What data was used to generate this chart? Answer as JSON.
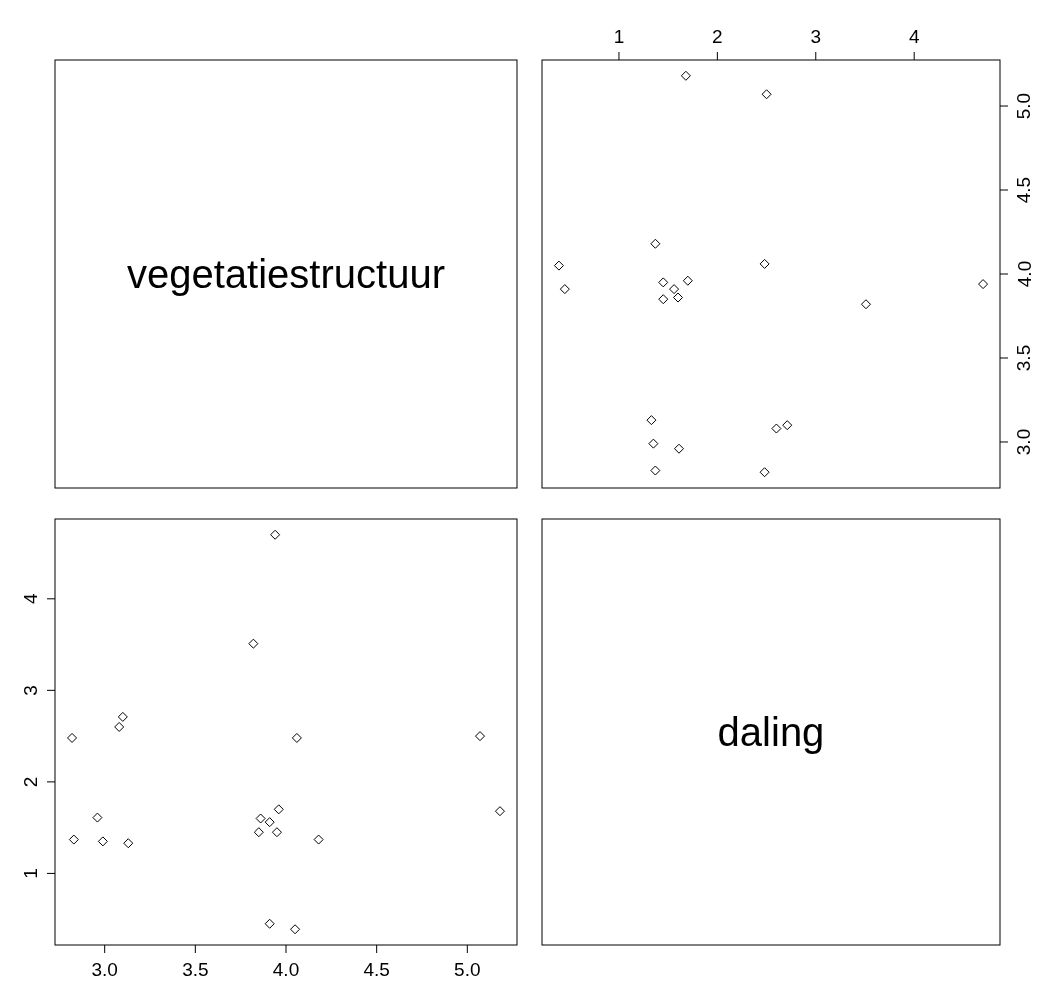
{
  "chart_data": [
    {
      "type": "other",
      "title": "vegetatiestructuur"
    },
    {
      "type": "scatter",
      "marker": "diamond",
      "xlim": [
        0.218,
        4.872
      ],
      "xticks": [
        1,
        2,
        3,
        4
      ],
      "ylim": [
        2.726,
        5.274
      ],
      "yticks": [
        {
          "value": 3,
          "label": "3.0"
        },
        {
          "value": 3.5,
          "label": "3.5"
        },
        {
          "value": 4,
          "label": "4.0"
        },
        {
          "value": 4.5,
          "label": "4.5"
        },
        {
          "value": 5,
          "label": "5.0"
        }
      ],
      "series": [
        {
          "color": "#000000",
          "x": [
            2.48,
            1.37,
            1.61,
            1.35,
            2.6,
            2.71,
            1.33,
            3.51,
            4.7,
            1.45,
            1.6,
            1.56,
            1.45,
            1.7,
            2.48,
            1.37,
            0.45,
            0.39,
            2.5,
            1.68
          ],
          "values": [
            2.82,
            2.83,
            2.96,
            2.99,
            3.08,
            3.1,
            3.13,
            3.82,
            3.94,
            3.85,
            3.86,
            3.91,
            3.95,
            3.96,
            4.06,
            4.18,
            3.91,
            4.05,
            5.07,
            5.18
          ]
        }
      ]
    },
    {
      "type": "scatter",
      "marker": "diamond",
      "xlim": [
        2.726,
        5.274
      ],
      "xticks": [
        {
          "value": 3,
          "label": "3.0"
        },
        {
          "value": 3.5,
          "label": "3.5"
        },
        {
          "value": 4,
          "label": "4.0"
        },
        {
          "value": 4.5,
          "label": "4.5"
        },
        {
          "value": 5,
          "label": "5.0"
        }
      ],
      "ylim": [
        0.218,
        4.872
      ],
      "yticks": [
        1,
        2,
        3,
        4
      ],
      "series": [
        {
          "color": "#000000",
          "x": [
            2.82,
            2.83,
            2.96,
            2.99,
            3.08,
            3.1,
            3.13,
            3.82,
            3.94,
            3.85,
            3.86,
            3.91,
            3.95,
            3.96,
            4.06,
            4.18,
            3.91,
            4.05,
            5.07,
            5.18
          ],
          "values": [
            2.48,
            1.37,
            1.61,
            1.35,
            2.6,
            2.71,
            1.33,
            3.51,
            4.7,
            1.45,
            1.6,
            1.56,
            1.45,
            1.7,
            2.48,
            1.37,
            0.45,
            0.39,
            2.5,
            1.68
          ]
        }
      ]
    },
    {
      "type": "other",
      "title": "daling"
    }
  ]
}
